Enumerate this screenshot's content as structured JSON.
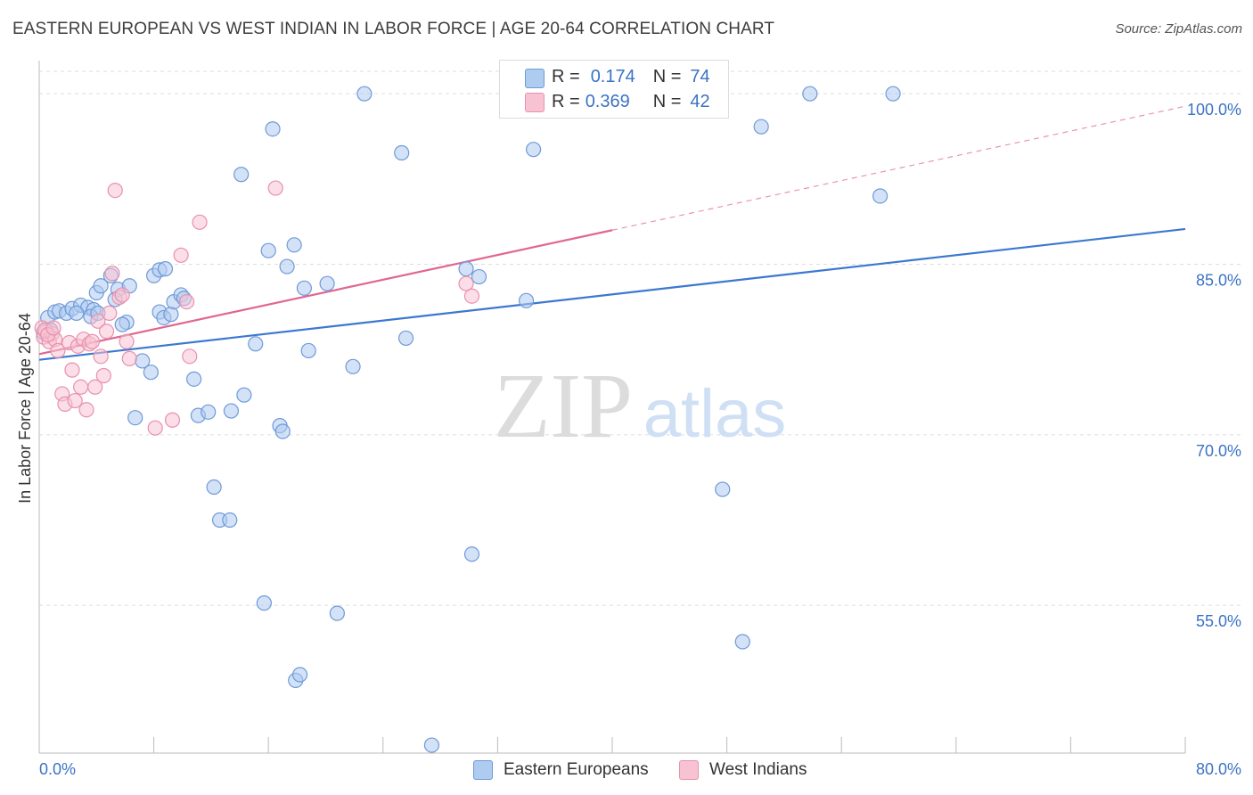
{
  "header": {
    "title": "EASTERN EUROPEAN VS WEST INDIAN IN LABOR FORCE | AGE 20-64 CORRELATION CHART",
    "source": "Source: ZipAtlas.com"
  },
  "legend": {
    "rows": [
      {
        "r_label": "R =",
        "r_value": "0.174",
        "n_label": "N =",
        "n_value": "74"
      },
      {
        "r_label": "R =",
        "r_value": "0.369",
        "n_label": "N =",
        "n_value": "42"
      }
    ]
  },
  "bottom_legend": {
    "items": [
      "Eastern Europeans",
      "West Indians"
    ]
  },
  "watermark": {
    "zip": "ZIP",
    "atlas": "atlas"
  },
  "colors": {
    "blue_fill": "#aecbf0",
    "blue_stroke": "#6f9ad8",
    "blue_line": "#3b78d0",
    "pink_fill": "#f7c3d3",
    "pink_stroke": "#e891ad",
    "pink_line": "#e06690",
    "axis_text": "#3b73c4",
    "grid": "#dddddd"
  },
  "chart_data": {
    "type": "scatter",
    "title": "EASTERN EUROPEAN VS WEST INDIAN IN LABOR FORCE | AGE 20-64 CORRELATION CHART",
    "xlabel": "",
    "ylabel": "In Labor Force | Age 20-64",
    "xlim": [
      0,
      80
    ],
    "ylim": [
      42,
      102
    ],
    "x_tick_labels": [
      "0.0%",
      "80.0%"
    ],
    "y_ticks": [
      55,
      70,
      85,
      100
    ],
    "y_tick_labels": [
      "55.0%",
      "70.0%",
      "85.0%",
      "100.0%"
    ],
    "grid": true,
    "legend_position": "top-center",
    "series": [
      {
        "name": "Eastern Europeans",
        "trend": {
          "x0": 0,
          "y0": 76.6,
          "x1": 80,
          "y1": 88.1,
          "dashed_from": null
        },
        "points": [
          [
            0.6,
            80.3
          ],
          [
            0.8,
            79.2
          ],
          [
            1.1,
            80.8
          ],
          [
            1.4,
            80.9
          ],
          [
            1.9,
            80.7
          ],
          [
            2.3,
            81.1
          ],
          [
            2.9,
            81.4
          ],
          [
            3.4,
            81.2
          ],
          [
            3.8,
            81.0
          ],
          [
            4.0,
            82.5
          ],
          [
            4.3,
            83.1
          ],
          [
            5.0,
            84.0
          ],
          [
            5.5,
            82.8
          ],
          [
            6.3,
            83.1
          ],
          [
            5.3,
            81.9
          ],
          [
            6.1,
            79.9
          ],
          [
            5.8,
            79.7
          ],
          [
            7.2,
            76.5
          ],
          [
            7.8,
            75.5
          ],
          [
            8.4,
            80.8
          ],
          [
            8.7,
            80.3
          ],
          [
            9.2,
            80.6
          ],
          [
            9.4,
            81.7
          ],
          [
            6.7,
            71.5
          ],
          [
            8.0,
            84.0
          ],
          [
            8.4,
            84.5
          ],
          [
            8.8,
            84.6
          ],
          [
            9.9,
            82.3
          ],
          [
            10.1,
            82.0
          ],
          [
            10.8,
            74.9
          ],
          [
            11.1,
            71.7
          ],
          [
            11.8,
            72.0
          ],
          [
            12.2,
            65.4
          ],
          [
            12.6,
            62.5
          ],
          [
            13.3,
            62.5
          ],
          [
            13.4,
            72.1
          ],
          [
            14.1,
            92.9
          ],
          [
            14.3,
            73.5
          ],
          [
            15.1,
            78.0
          ],
          [
            15.7,
            55.2
          ],
          [
            16.0,
            86.2
          ],
          [
            16.3,
            96.9
          ],
          [
            16.8,
            70.8
          ],
          [
            17.0,
            70.3
          ],
          [
            17.3,
            84.8
          ],
          [
            17.8,
            86.7
          ],
          [
            17.9,
            48.4
          ],
          [
            18.2,
            48.9
          ],
          [
            18.5,
            82.9
          ],
          [
            18.8,
            77.4
          ],
          [
            20.1,
            83.3
          ],
          [
            20.8,
            54.3
          ],
          [
            21.9,
            76.0
          ],
          [
            22.7,
            100.0
          ],
          [
            25.3,
            94.8
          ],
          [
            25.6,
            78.5
          ],
          [
            27.4,
            42.7
          ],
          [
            29.8,
            84.6
          ],
          [
            30.2,
            59.5
          ],
          [
            30.7,
            83.9
          ],
          [
            34.0,
            81.8
          ],
          [
            34.5,
            95.1
          ],
          [
            37.9,
            100.0
          ],
          [
            39.7,
            100.2
          ],
          [
            47.7,
            65.2
          ],
          [
            49.1,
            51.8
          ],
          [
            50.4,
            97.1
          ],
          [
            53.8,
            100.0
          ],
          [
            58.7,
            91.0
          ],
          [
            59.6,
            100.0
          ],
          [
            0.3,
            79.0
          ],
          [
            2.6,
            80.7
          ],
          [
            3.6,
            80.4
          ],
          [
            4.1,
            80.7
          ]
        ]
      },
      {
        "name": "West Indians",
        "trend": {
          "x0": 0,
          "y0": 77.1,
          "x1": 80,
          "y1": 98.9,
          "dashed_from": 40
        },
        "points": [
          [
            0.3,
            78.6
          ],
          [
            0.5,
            79.1
          ],
          [
            0.7,
            78.2
          ],
          [
            0.9,
            78.9
          ],
          [
            1.1,
            78.4
          ],
          [
            1.3,
            77.4
          ],
          [
            1.6,
            73.6
          ],
          [
            1.8,
            72.7
          ],
          [
            2.1,
            78.1
          ],
          [
            2.3,
            75.7
          ],
          [
            2.5,
            73.0
          ],
          [
            2.7,
            77.8
          ],
          [
            2.9,
            74.2
          ],
          [
            3.1,
            78.4
          ],
          [
            3.3,
            72.2
          ],
          [
            3.5,
            78.0
          ],
          [
            3.7,
            78.2
          ],
          [
            3.9,
            74.2
          ],
          [
            4.1,
            80.0
          ],
          [
            4.3,
            76.9
          ],
          [
            4.5,
            75.2
          ],
          [
            4.7,
            79.1
          ],
          [
            4.9,
            80.7
          ],
          [
            5.1,
            84.2
          ],
          [
            5.3,
            91.5
          ],
          [
            5.6,
            82.1
          ],
          [
            5.8,
            82.3
          ],
          [
            6.1,
            78.2
          ],
          [
            6.3,
            76.7
          ],
          [
            8.1,
            70.6
          ],
          [
            9.3,
            71.3
          ],
          [
            9.9,
            85.8
          ],
          [
            10.3,
            81.7
          ],
          [
            10.5,
            76.9
          ],
          [
            11.2,
            88.7
          ],
          [
            16.5,
            91.7
          ],
          [
            29.8,
            83.3
          ],
          [
            30.2,
            82.2
          ],
          [
            0.2,
            79.4
          ],
          [
            0.4,
            79.2
          ],
          [
            0.6,
            78.8
          ],
          [
            1.0,
            79.4
          ]
        ]
      }
    ]
  }
}
